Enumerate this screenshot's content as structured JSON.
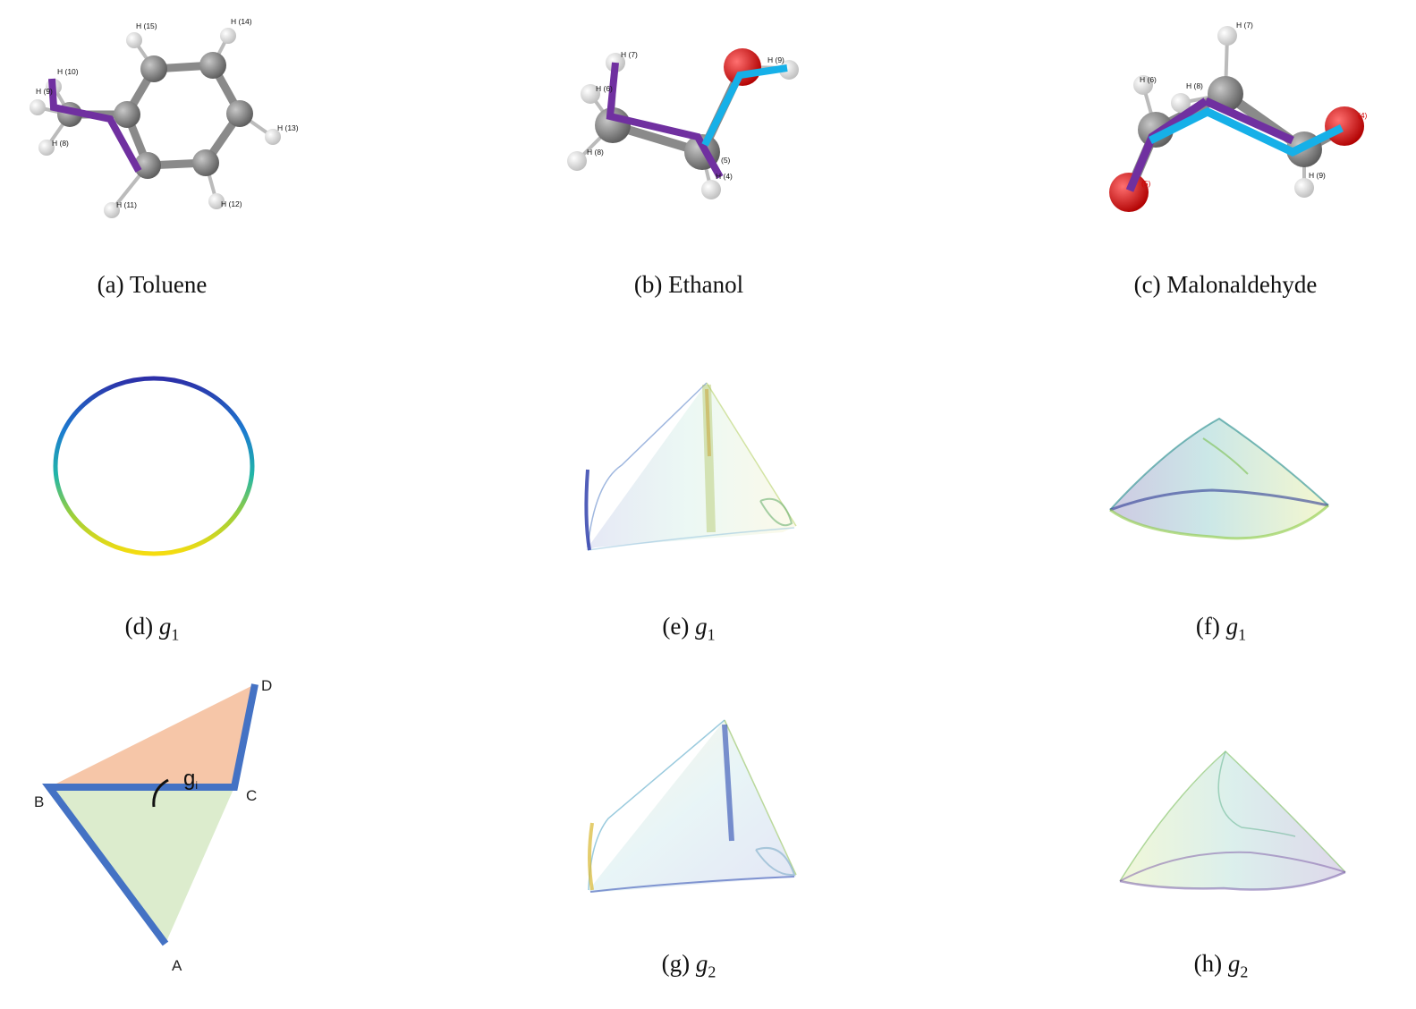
{
  "captions": {
    "a": {
      "prefix": "(a) ",
      "text": "Toluene"
    },
    "b": {
      "prefix": "(b) ",
      "text": "Ethanol"
    },
    "c": {
      "prefix": "(c) ",
      "text": "Malonaldehyde"
    },
    "d": {
      "prefix": "(d) ",
      "var": "g",
      "sub": "1"
    },
    "e": {
      "prefix": "(e) ",
      "var": "g",
      "sub": "1"
    },
    "f": {
      "prefix": "(f) ",
      "var": "g",
      "sub": "1"
    },
    "g": {
      "prefix": "(g) ",
      "var": "g",
      "sub": "2"
    },
    "h": {
      "prefix": "(h) ",
      "var": "g",
      "sub": "2"
    }
  },
  "toluene_labels": {
    "h15": "H (15)",
    "h14": "H (14)",
    "h10": "H (10)",
    "h9": "H (9)",
    "h8": "H (8)",
    "h13": "H (13)",
    "h11": "H (11)",
    "h12": "H (12)"
  },
  "ethanol_labels": {
    "h7": "H (7)",
    "h6": "H (6)",
    "h9": "H (9)",
    "h8": "H (8)",
    "h5": "(5)",
    "h4": "H (4)"
  },
  "malon_labels": {
    "h7": "H (7)",
    "h6": "H (6)",
    "h8": "H (8)",
    "h9": "H (9)",
    "o4": "(4)",
    "o5": "(5)"
  },
  "diagram_labels": {
    "a": "A",
    "b": "B",
    "c": "C",
    "d": "D",
    "gi": "g",
    "gi_sub": "i"
  },
  "colors": {
    "bond_purple": "#7030a0",
    "bond_cyan": "#16b0e8",
    "carbon": "#7a7a7a",
    "oxygen": "#e00000",
    "hydrogen": "#f0f0f0",
    "diagram_blue": "#4472c4",
    "fill_orange": "#f6c6a8",
    "fill_green": "#dceccd"
  }
}
